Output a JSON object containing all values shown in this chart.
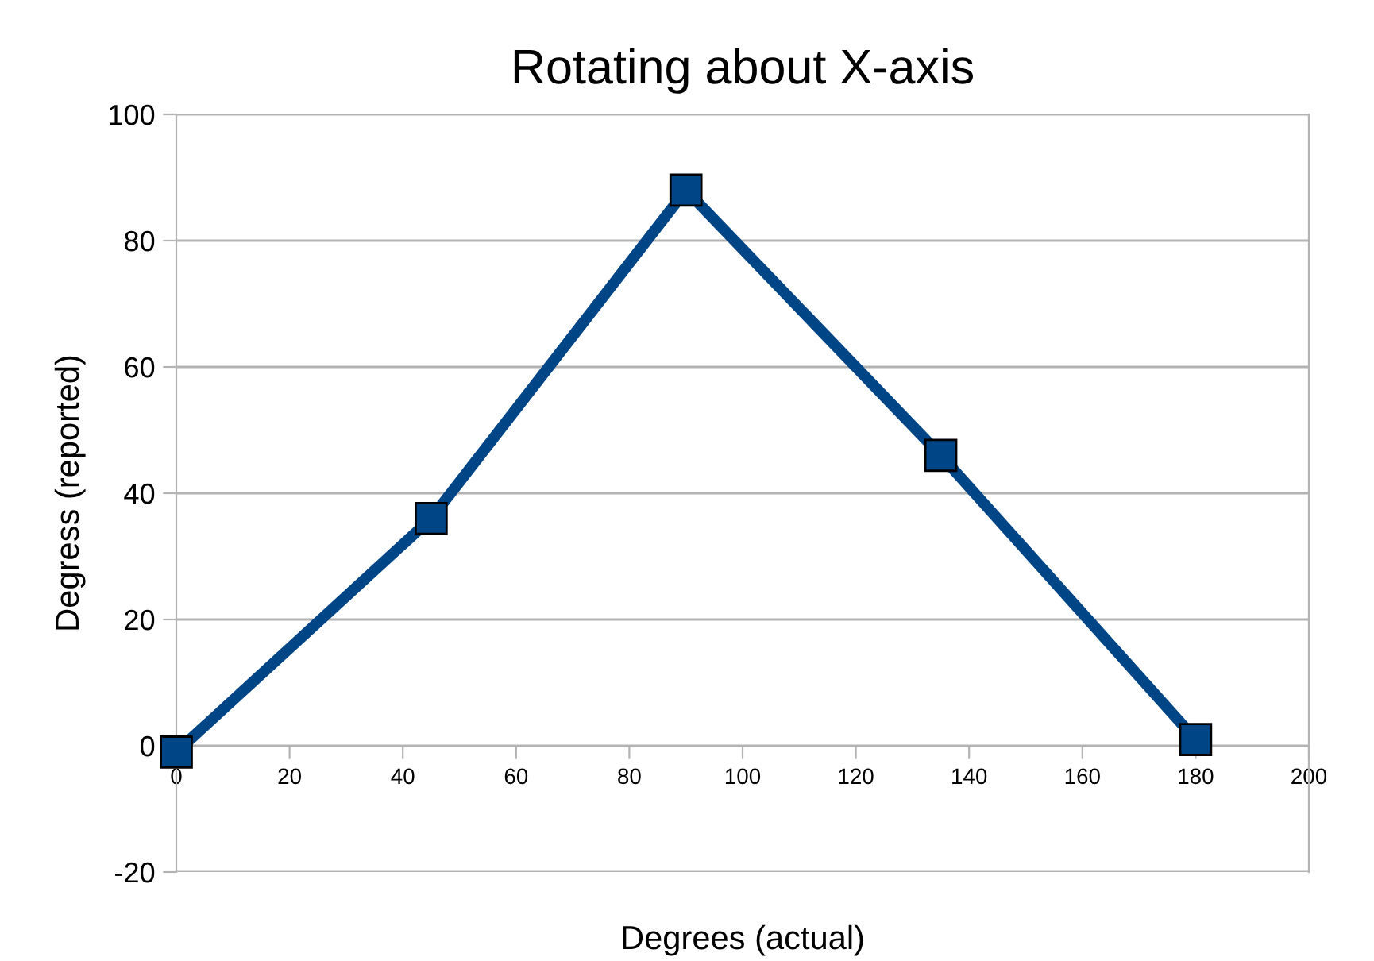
{
  "chart_data": {
    "type": "line",
    "title": "Rotating about X-axis",
    "xlabel": "Degrees (actual)",
    "ylabel": "Degress (reported)",
    "x": [
      0,
      45,
      90,
      135,
      180
    ],
    "series": [
      {
        "color": "#004586",
        "values": [
          -1,
          36,
          88,
          46,
          1
        ]
      }
    ],
    "xlim": [
      0,
      200
    ],
    "xticks": [
      0,
      20,
      40,
      60,
      80,
      100,
      120,
      140,
      160,
      180,
      200
    ],
    "ylim": [
      -20,
      100
    ],
    "yticks": [
      -20,
      0,
      20,
      40,
      60,
      80,
      100
    ],
    "grid": "y",
    "marker": "square",
    "line_style": "solid"
  }
}
